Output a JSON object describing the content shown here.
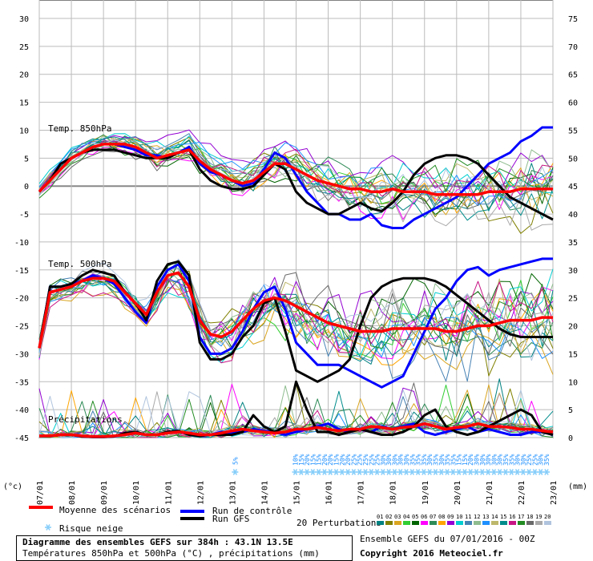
{
  "chart_data": {
    "type": "line",
    "title": "Diagramme des ensembles GEFS sur 384h : 43.1N 13.5E",
    "subtitle": "Températures 850hPa et 500hPa (°C) , précipitations (mm)",
    "left_axis": {
      "unit_label": "(°c)",
      "ticks": [
        30,
        25,
        20,
        15,
        10,
        5,
        0,
        -5,
        -10,
        -15,
        -20,
        -25,
        -30,
        -35,
        -40,
        -45
      ],
      "range": [
        -45,
        30
      ]
    },
    "right_axis": {
      "unit_label": "(mm)",
      "ticks": [
        75,
        70,
        65,
        60,
        55,
        50,
        45,
        40,
        35,
        30,
        25,
        20,
        15,
        10,
        5,
        0
      ],
      "range": [
        0,
        75
      ]
    },
    "x_ticks": [
      "07/01",
      "08/01",
      "09/01",
      "10/01",
      "11/01",
      "12/01",
      "13/01",
      "14/01",
      "15/01",
      "16/01",
      "17/01",
      "18/01",
      "19/01",
      "20/01",
      "21/01",
      "22/01",
      "23/01"
    ],
    "section_labels": {
      "t850": "Temp. 850hPa",
      "t500": "Temp. 500hPa",
      "precip": "Précipitations"
    },
    "snow_risk_percent": [
      "5%",
      "10%",
      "15%",
      "20%",
      "15%",
      "15%",
      "20%",
      "20%",
      "15%",
      "20%",
      "20%",
      "25%",
      "25%",
      "25%",
      "25%",
      "25%",
      "30%",
      "30%",
      "30%",
      "30%",
      "30%",
      "35%",
      "35%",
      "35%",
      "30%",
      "35%",
      "30%",
      "35%",
      "35%",
      "15%",
      "15%",
      "20%",
      "30%",
      "30%",
      "30%",
      "30%",
      "30%",
      "35%",
      "35%",
      "30%",
      "30%",
      "25%",
      "25%",
      "30%",
      "35%"
    ],
    "legend": {
      "mean_label": "Moyenne des scénarios",
      "control_label": "Run de contrôle",
      "gfs_label": "Run GFS",
      "snow_label": "Risque neige",
      "perturbations_label": "20 Perturbations",
      "perturbation_ids": [
        "01",
        "02",
        "03",
        "04",
        "05",
        "06",
        "07",
        "08",
        "09",
        "10",
        "11",
        "12",
        "13",
        "14",
        "15",
        "16",
        "17",
        "18",
        "19",
        "20"
      ]
    },
    "colors": {
      "mean": "#ff0000",
      "control": "#0000ff",
      "gfs": "#000000",
      "snow": "#87cefa",
      "perturbations": [
        "#008080",
        "#808000",
        "#daa520",
        "#32cd32",
        "#006400",
        "#ff00ff",
        "#2e8b57",
        "#ffa500",
        "#9400d3",
        "#00ced1",
        "#4682b4",
        "#8fbc8f",
        "#1e90ff",
        "#bdb76b",
        "#008b8b",
        "#c71585",
        "#228b22",
        "#696969",
        "#a9a9a9",
        "#b0c4de"
      ]
    },
    "series": {
      "mean_850": [
        -1,
        1,
        3,
        5,
        6,
        7,
        7.5,
        7.5,
        7.5,
        7,
        6,
        5,
        5.5,
        6,
        6.5,
        4.5,
        3,
        2,
        1,
        0.5,
        1,
        2.5,
        4,
        4,
        3,
        2,
        1,
        0.5,
        0,
        -0.5,
        -0.5,
        -1,
        -1,
        -0.5,
        -1,
        -1,
        -1,
        -1.5,
        -1.5,
        -1.5,
        -1.5,
        -1.5,
        -1,
        -1,
        -1,
        -0.5,
        -0.5,
        -0.5,
        -0.5
      ],
      "control_850": [
        -1,
        1,
        4,
        5,
        6,
        7,
        7.5,
        7.5,
        7,
        6.5,
        5.5,
        5.5,
        5,
        6,
        7,
        4,
        2.5,
        2,
        1,
        0,
        0.5,
        3,
        6,
        5,
        2,
        -1,
        -3,
        -5,
        -5,
        -6,
        -6,
        -5,
        -7,
        -7.5,
        -7.5,
        -6,
        -5,
        -4,
        -3,
        -2,
        0,
        2,
        4,
        5,
        6,
        8,
        9,
        10.5,
        10.5
      ],
      "gfs_850": [
        -1,
        1,
        4,
        5,
        6,
        6.5,
        6.5,
        6.5,
        6,
        5.5,
        5,
        5,
        5,
        6,
        6.5,
        3,
        1,
        0,
        -0.5,
        -0.5,
        0,
        2,
        4,
        3,
        -1,
        -3,
        -4,
        -5,
        -5,
        -4,
        -3,
        -4,
        -4.5,
        -3,
        -1,
        2,
        4,
        5,
        5.5,
        5.5,
        5,
        4,
        2,
        0,
        -2,
        -3,
        -4,
        -5,
        -6
      ],
      "mean_500": [
        -29,
        -19,
        -18.5,
        -18,
        -17,
        -16.5,
        -16.5,
        -17,
        -19,
        -21,
        -23,
        -19,
        -16,
        -15.5,
        -18,
        -24,
        -26.5,
        -27,
        -26,
        -24,
        -22,
        -20.5,
        -20,
        -20.5,
        -21.5,
        -22.5,
        -23.5,
        -24.5,
        -25,
        -25.5,
        -26,
        -26,
        -26,
        -25.5,
        -25.5,
        -25.5,
        -25.5,
        -25.5,
        -26,
        -26,
        -25.5,
        -25,
        -25,
        -24.5,
        -24,
        -24,
        -24,
        -23.5,
        -23.5
      ],
      "control_500": [
        -29,
        -18,
        -18,
        -17.5,
        -17,
        -16,
        -16.5,
        -17.5,
        -20,
        -22.5,
        -24.5,
        -18,
        -15,
        -14,
        -17,
        -27,
        -30,
        -30,
        -29,
        -26,
        -22,
        -19,
        -18,
        -22,
        -28,
        -30,
        -32,
        -32,
        -32,
        -33,
        -34,
        -35,
        -36,
        -35,
        -34,
        -30,
        -26,
        -22,
        -20,
        -17,
        -15,
        -14.5,
        -16,
        -15,
        -14.5,
        -14,
        -13.5,
        -13,
        -13
      ],
      "gfs_500": [
        -29,
        -18,
        -18,
        -17.5,
        -16,
        -15,
        -15.5,
        -16,
        -19,
        -21,
        -24,
        -17,
        -14,
        -13.5,
        -16,
        -28,
        -31,
        -31,
        -30,
        -27,
        -25,
        -21,
        -20,
        -26,
        -33,
        -34,
        -35,
        -34,
        -33,
        -31,
        -25,
        -20,
        -18,
        -17,
        -16.5,
        -16.5,
        -16.5,
        -17,
        -18,
        -19.5,
        -21,
        -22.5,
        -24,
        -25.5,
        -26.5,
        -27,
        -27,
        -27,
        -27
      ],
      "mean_precip": [
        0.3,
        0.3,
        0.5,
        0.5,
        0.3,
        0.2,
        0.2,
        0.3,
        0.5,
        0.8,
        0.5,
        0.5,
        0.8,
        1,
        0.8,
        0.5,
        0.5,
        0.8,
        1.2,
        1.5,
        1.2,
        1,
        0.8,
        1,
        1.5,
        1.5,
        1.8,
        1.5,
        1.2,
        1.5,
        1.5,
        2,
        1.8,
        1.5,
        1.8,
        2,
        2.5,
        2,
        1.5,
        1.8,
        2,
        2.5,
        2,
        2,
        1.8,
        1.5,
        1.5,
        1.2,
        1
      ],
      "control_precip": [
        0.3,
        0.3,
        0.5,
        0.5,
        0.2,
        0.1,
        0.1,
        0.2,
        0.5,
        1,
        0.5,
        0.5,
        1,
        1.2,
        0.5,
        0.3,
        0.5,
        1,
        0.8,
        1,
        1.5,
        1.2,
        1,
        0.5,
        1,
        1.5,
        2,
        2.5,
        1.5,
        1,
        1.5,
        1,
        2,
        1.5,
        2,
        2.5,
        1,
        0.5,
        1,
        1.5,
        2,
        1,
        1.5,
        1,
        0.5,
        0.5,
        1,
        1,
        0.5
      ],
      "gfs_precip": [
        0.3,
        0.3,
        0.5,
        0.5,
        0.2,
        0.1,
        0.1,
        0.2,
        0.8,
        1,
        0.5,
        0.5,
        1,
        1.2,
        0.5,
        0.3,
        0.5,
        0.5,
        0.5,
        1,
        4,
        2,
        1,
        2,
        10,
        5,
        1,
        1,
        0.5,
        1,
        1.5,
        1,
        0.5,
        0.5,
        1,
        2,
        4,
        5,
        2,
        1,
        0.5,
        1,
        2,
        3,
        4,
        5,
        4,
        1,
        0.5
      ]
    },
    "footer": {
      "run_label": "Ensemble GEFS du 07/01/2016 - 00Z",
      "copyright": "Copyright 2016 Meteociel.fr"
    }
  }
}
